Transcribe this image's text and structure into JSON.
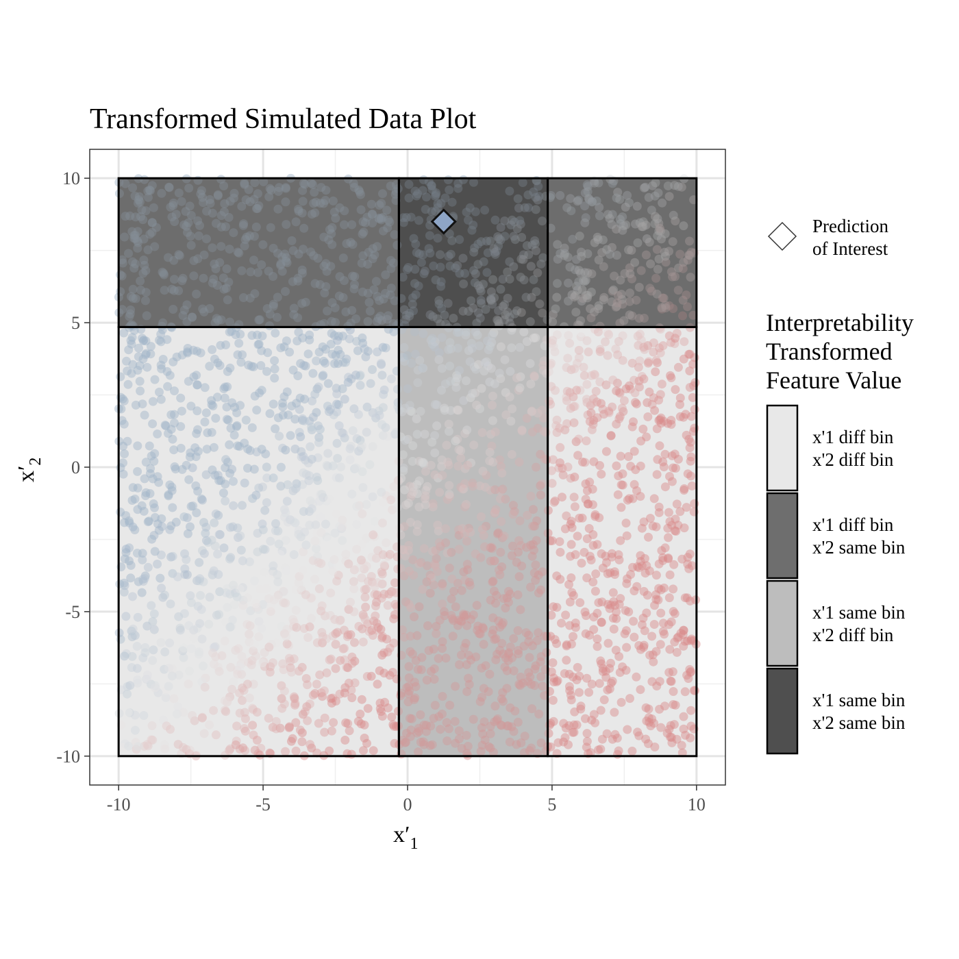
{
  "chart_data": {
    "type": "scatter",
    "title": "Transformed Simulated Data Plot",
    "xlabel_main": "x′",
    "xlabel_sub": "1",
    "ylabel_main": "x′",
    "ylabel_sub": "2",
    "xlim": [
      -11,
      11
    ],
    "ylim": [
      -11,
      11
    ],
    "x_ticks": [
      -10,
      -5,
      0,
      5,
      10
    ],
    "y_ticks": [
      -10,
      -5,
      0,
      5,
      10
    ],
    "x_tick_labels": [
      "-10",
      "-5",
      "0",
      "5",
      "10"
    ],
    "y_tick_labels": [
      "-10",
      "-5",
      "0",
      "5",
      "10"
    ],
    "grid": true,
    "x_bin_edges": [
      -10,
      -0.3,
      4.85,
      10
    ],
    "y_bin_edges": [
      -10,
      4.85,
      10
    ],
    "regions": [
      {
        "x": [
          -10,
          -0.3
        ],
        "y": [
          -10,
          4.85
        ],
        "category": "x'1 diff bin\nx'2 diff bin"
      },
      {
        "x": [
          -0.3,
          4.85
        ],
        "y": [
          -10,
          4.85
        ],
        "category": "x'1 same bin\nx'2 diff bin"
      },
      {
        "x": [
          4.85,
          10
        ],
        "y": [
          -10,
          4.85
        ],
        "category": "x'1 diff bin\nx'2 diff bin"
      },
      {
        "x": [
          -10,
          -0.3
        ],
        "y": [
          4.85,
          10
        ],
        "category": "x'1 diff bin\nx'2 same bin"
      },
      {
        "x": [
          -0.3,
          4.85
        ],
        "y": [
          4.85,
          10
        ],
        "category": "x'1 same bin\nx'2 same bin"
      },
      {
        "x": [
          4.85,
          10
        ],
        "y": [
          4.85,
          10
        ],
        "category": "x'1 diff bin\nx'2 same bin"
      }
    ],
    "points": {
      "count": 3200,
      "x_range": [
        -10,
        10
      ],
      "y_range": [
        -10,
        10
      ],
      "color_low": "#9fb3c8",
      "color_high": "#d98a8a",
      "color_mid": "#e8e8e8",
      "opacity": 0.45
    },
    "prediction_of_interest": {
      "x": 1.25,
      "y": 8.5,
      "fill": "#8ea5c6"
    },
    "legend": {
      "shape_entry": "Prediction of Interest",
      "shape_lines": [
        "Prediction",
        "of Interest"
      ],
      "fill_title_lines": [
        "Interpretability",
        "Transformed",
        "Feature Value"
      ],
      "fill_entries": [
        {
          "lines": [
            "x'1 diff bin",
            "x'2 diff bin"
          ],
          "color": "#e8e8e8"
        },
        {
          "lines": [
            "x'1 diff bin",
            "x'2 same bin"
          ],
          "color": "#6e6e6e"
        },
        {
          "lines": [
            "x'1 same bin",
            "x'2 diff bin"
          ],
          "color": "#bdbdbd"
        },
        {
          "lines": [
            "x'1 same bin",
            "x'2 same bin"
          ],
          "color": "#4f4f4f"
        }
      ],
      "position": "right"
    }
  }
}
